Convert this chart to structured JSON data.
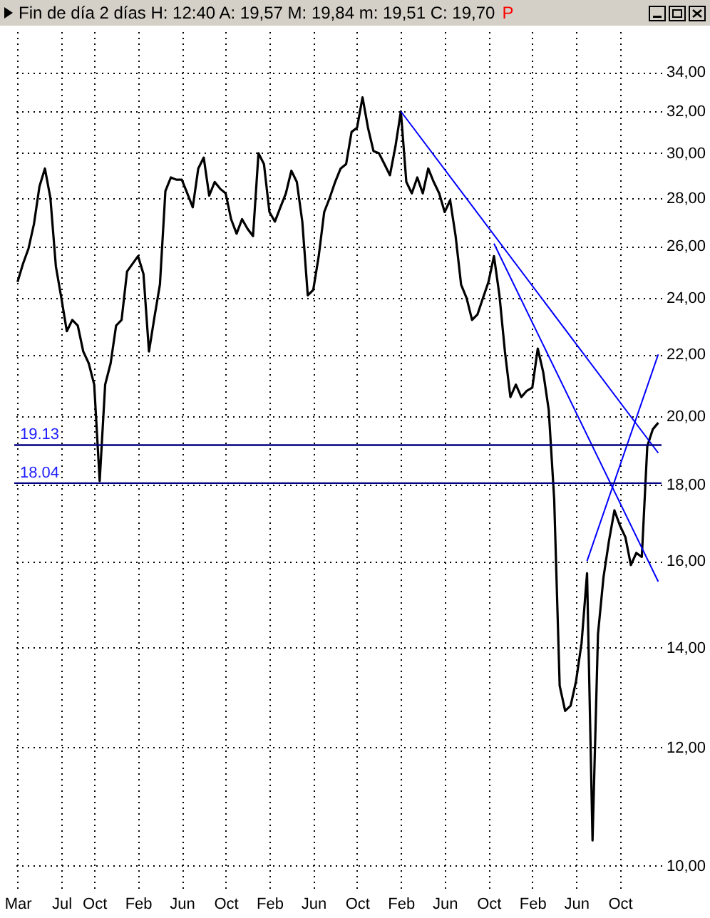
{
  "chart_data": {
    "type": "line",
    "title": "Fin de día 2 días  H: 12:40  A: 19,57  M: 19,84  m: 19,51  C: 19,70",
    "annotations": [
      "P"
    ],
    "log": "y",
    "grid": true,
    "marker": "none",
    "line_style": "solid",
    "categories": [
      "Mar",
      null,
      null,
      null,
      null,
      null,
      null,
      null,
      "Jul",
      null,
      null,
      null,
      null,
      null,
      "Oct",
      null,
      null,
      null,
      null,
      null,
      null,
      null,
      "Feb",
      null,
      null,
      null,
      null,
      null,
      null,
      null,
      "Jun",
      null,
      null,
      null,
      null,
      null,
      null,
      null,
      "Oct",
      null,
      null,
      null,
      null,
      null,
      null,
      null,
      "Feb",
      null,
      null,
      null,
      null,
      null,
      null,
      null,
      "Jun",
      null,
      null,
      null,
      null,
      null,
      null,
      null,
      "Oct",
      null,
      null,
      null,
      null,
      null,
      null,
      null,
      "Feb",
      null,
      null,
      null,
      null,
      null,
      null,
      null,
      "Jun",
      null,
      null,
      null,
      null,
      null,
      null,
      null,
      "Oct",
      null,
      null,
      null,
      null,
      null,
      null,
      null,
      "Feb",
      null,
      null,
      null,
      null,
      null,
      null,
      null,
      "Jun",
      null,
      null,
      null,
      null,
      null,
      null,
      null,
      "Oct",
      null,
      null,
      null,
      null,
      null,
      null,
      null
    ],
    "ylim": [
      9.6,
      36.2
    ],
    "yticks": [
      {
        "value": 10,
        "label": "10,00"
      },
      {
        "value": 12,
        "label": "12,00"
      },
      {
        "value": 14,
        "label": "14,00"
      },
      {
        "value": 16,
        "label": "16,00"
      },
      {
        "value": 18,
        "label": "18,00"
      },
      {
        "value": 20,
        "label": "20,00"
      },
      {
        "value": 22,
        "label": "22,00"
      },
      {
        "value": 24,
        "label": "24,00"
      },
      {
        "value": 26,
        "label": "26,00"
      },
      {
        "value": 28,
        "label": "28,00"
      },
      {
        "value": 30,
        "label": "30,00"
      },
      {
        "value": 32,
        "label": "32,00"
      },
      {
        "value": 34,
        "label": "34,00"
      }
    ],
    "ref_lines": [
      {
        "axis": "y",
        "value": 19.13,
        "label": "19.13",
        "color": "#000080"
      },
      {
        "axis": "y",
        "value": 18.04,
        "label": "18.04",
        "color": "#000080"
      }
    ],
    "series": [
      {
        "color": "#000000",
        "values": [
          24.6,
          25.3,
          25.9,
          26.9,
          28.5,
          29.3,
          28.0,
          25.2,
          24.0,
          22.8,
          23.2,
          23.0,
          22.1,
          21.7,
          21.0,
          18.1,
          21.0,
          21.7,
          23.0,
          23.2,
          25.0,
          25.3,
          25.6,
          24.9,
          22.1,
          23.3,
          24.5,
          28.3,
          28.9,
          28.8,
          28.8,
          28.2,
          27.6,
          29.3,
          29.8,
          28.1,
          28.7,
          28.4,
          28.2,
          27.1,
          26.5,
          27.1,
          26.7,
          26.4,
          30.0,
          29.5,
          27.4,
          27.0,
          27.6,
          28.2,
          29.2,
          28.7,
          27.0,
          24.1,
          24.3,
          25.6,
          27.4,
          28.0,
          28.7,
          29.3,
          29.5,
          31.0,
          31.2,
          32.7,
          31.2,
          30.1,
          30.0,
          29.5,
          29.0,
          30.3,
          32.0,
          28.7,
          28.2,
          28.9,
          28.2,
          29.3,
          28.7,
          28.2,
          27.4,
          27.9,
          26.4,
          24.5,
          24.0,
          23.2,
          23.4,
          24.0,
          24.6,
          25.6,
          24.1,
          22.1,
          20.6,
          21.0,
          20.6,
          20.8,
          20.9,
          22.2,
          21.4,
          20.2,
          17.6,
          13.2,
          12.7,
          12.8,
          13.3,
          14.1,
          15.7,
          10.4,
          14.3,
          15.6,
          16.5,
          17.3,
          16.9,
          16.6,
          15.9,
          16.2,
          16.1,
          19.1,
          19.6,
          19.8
        ]
      },
      {
        "color": "#0000ff",
        "values": [
          null,
          null,
          null,
          null,
          null,
          null,
          null,
          null,
          null,
          null,
          null,
          null,
          null,
          null,
          null,
          null,
          null,
          null,
          null,
          null,
          null,
          null,
          null,
          null,
          null,
          null,
          null,
          null,
          null,
          null,
          null,
          null,
          null,
          null,
          null,
          null,
          null,
          null,
          null,
          null,
          null,
          null,
          null,
          null,
          null,
          null,
          null,
          null,
          null,
          null,
          null,
          null,
          null,
          null,
          null,
          null,
          null,
          null,
          null,
          null,
          null,
          null,
          null,
          null,
          null,
          null,
          null,
          null,
          null,
          null,
          32.0,
          null,
          null,
          null,
          null,
          null,
          null,
          null,
          null,
          null,
          null,
          null,
          null,
          null,
          null,
          null,
          null,
          null,
          null,
          null,
          null,
          null,
          null,
          null,
          null,
          null,
          null,
          null,
          null,
          null,
          null,
          null,
          null,
          null,
          null,
          null,
          null,
          null,
          null,
          null,
          null,
          null,
          null,
          null,
          null,
          null,
          null,
          18.9
        ]
      },
      {
        "type": "line",
        "color": "#0000ff",
        "values": [
          null,
          null,
          null,
          null,
          null,
          null,
          null,
          null,
          null,
          null,
          null,
          null,
          null,
          null,
          null,
          null,
          null,
          null,
          null,
          null,
          null,
          null,
          null,
          null,
          null,
          null,
          null,
          null,
          null,
          null,
          null,
          null,
          null,
          null,
          null,
          null,
          null,
          null,
          null,
          null,
          null,
          null,
          null,
          null,
          null,
          null,
          null,
          null,
          null,
          null,
          null,
          null,
          null,
          null,
          null,
          null,
          null,
          null,
          null,
          null,
          null,
          null,
          null,
          null,
          null,
          null,
          null,
          null,
          null,
          null,
          null,
          null,
          null,
          null,
          null,
          null,
          null,
          null,
          null,
          null,
          null,
          null,
          null,
          null,
          null,
          null,
          null,
          26.1,
          null,
          null,
          null,
          null,
          null,
          null,
          null,
          null,
          null,
          null,
          null,
          null,
          null,
          null,
          null,
          null,
          null,
          null,
          null,
          null,
          null,
          null,
          null,
          null,
          null,
          null,
          null,
          null,
          null,
          15.5
        ]
      },
      {
        "type": "line",
        "color": "#0000ff",
        "values": [
          null,
          null,
          null,
          null,
          null,
          null,
          null,
          null,
          null,
          null,
          null,
          null,
          null,
          null,
          null,
          null,
          null,
          null,
          null,
          null,
          null,
          null,
          null,
          null,
          null,
          null,
          null,
          null,
          null,
          null,
          null,
          null,
          null,
          null,
          null,
          null,
          null,
          null,
          null,
          null,
          null,
          null,
          null,
          null,
          null,
          null,
          null,
          null,
          null,
          null,
          null,
          null,
          null,
          null,
          null,
          null,
          null,
          null,
          null,
          null,
          null,
          null,
          null,
          null,
          null,
          null,
          null,
          null,
          null,
          null,
          null,
          null,
          null,
          null,
          null,
          null,
          null,
          null,
          null,
          null,
          null,
          null,
          null,
          null,
          null,
          null,
          null,
          null,
          null,
          null,
          null,
          null,
          null,
          null,
          null,
          null,
          null,
          null,
          null,
          null,
          null,
          null,
          null,
          null,
          16.0,
          null,
          null,
          null,
          null,
          null,
          null,
          null,
          null,
          null,
          null,
          null,
          null,
          22.0
        ]
      }
    ]
  }
}
